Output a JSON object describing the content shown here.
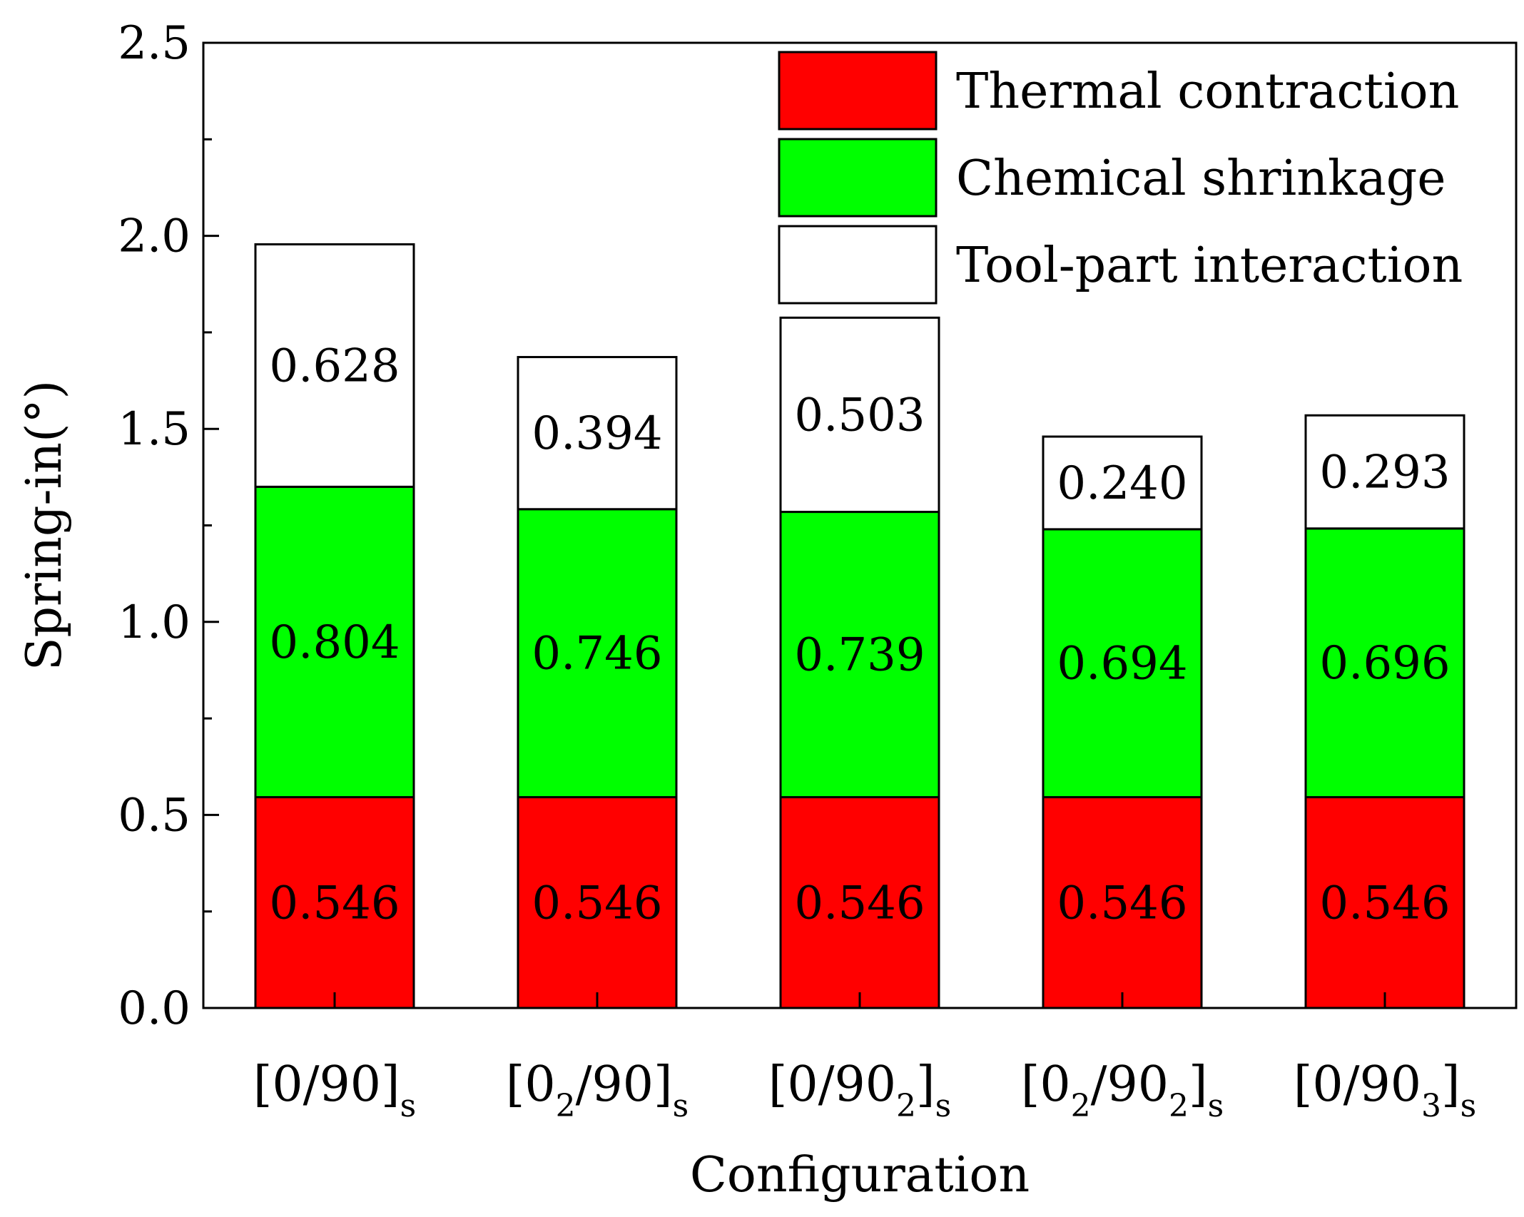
{
  "chart_data": {
    "type": "bar",
    "stacked": true,
    "title": "",
    "xlabel": "Configuration",
    "ylabel": "Spring-in(°)",
    "ylim": [
      0,
      2.5
    ],
    "yticks": [
      "0.0",
      "0.5",
      "1.0",
      "1.5",
      "2.0",
      "2.5"
    ],
    "categories": [
      {
        "base": "[0/90]",
        "subs": [
          "",
          "",
          "s"
        ]
      },
      {
        "base": "[0",
        "subs": [
          "2",
          "/90]",
          "s"
        ]
      },
      {
        "base": "[0/90",
        "subs": [
          "2",
          "]",
          "s"
        ]
      },
      {
        "base": "[0",
        "subs": [
          "2",
          "/90",
          "2"
        ],
        "tail": "]",
        "tail_sub": "s"
      },
      {
        "base": "[0/90",
        "subs": [
          "3",
          "]",
          "s"
        ]
      }
    ],
    "series": [
      {
        "name": "Thermal contraction",
        "color": "#ff0000",
        "values": [
          0.546,
          0.546,
          0.546,
          0.546,
          0.546
        ],
        "labels": [
          "0.546",
          "0.546",
          "0.546",
          "0.546",
          "0.546"
        ]
      },
      {
        "name": "Chemical shrinkage",
        "color": "#00ff00",
        "values": [
          0.804,
          0.746,
          0.739,
          0.694,
          0.696
        ],
        "labels": [
          "0.804",
          "0.746",
          "0.739",
          "0.694",
          "0.696"
        ]
      },
      {
        "name": "Tool-part interaction",
        "color": "#ffffff",
        "values": [
          0.628,
          0.394,
          0.503,
          0.24,
          0.293
        ],
        "labels": [
          "0.628",
          "0.394",
          "0.503",
          "0.240",
          "0.293"
        ]
      }
    ],
    "legend_position": "top-right"
  }
}
